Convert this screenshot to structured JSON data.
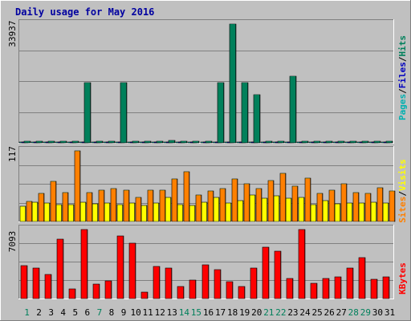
{
  "chart_data": [
    {
      "type": "bar",
      "title": "Daily usage for May 2016",
      "ylabel": "Pages / Files / Hits",
      "ylabel_parts": [
        "Pages",
        "Files",
        "Hits"
      ],
      "ymax_label": "33937",
      "ylim": [
        0,
        33937
      ],
      "grid": true,
      "categories": [
        "1",
        "2",
        "3",
        "4",
        "5",
        "6",
        "7",
        "8",
        "9",
        "10",
        "11",
        "12",
        "13",
        "14",
        "15",
        "16",
        "17",
        "18",
        "19",
        "20",
        "21",
        "22",
        "23",
        "24",
        "25",
        "26",
        "27",
        "28",
        "29",
        "30",
        "31"
      ],
      "series": [
        {
          "name": "Pages",
          "color": "#00b0b0",
          "values": [
            90,
            90,
            90,
            90,
            90,
            90,
            90,
            90,
            90,
            90,
            90,
            90,
            90,
            90,
            90,
            90,
            90,
            90,
            90,
            90,
            90,
            90,
            90,
            90,
            90,
            90,
            90,
            90,
            90,
            90,
            90
          ]
        },
        {
          "name": "Files",
          "color": "#0000c0",
          "values": [
            300,
            300,
            300,
            300,
            300,
            300,
            300,
            300,
            300,
            300,
            300,
            300,
            300,
            300,
            300,
            300,
            300,
            300,
            300,
            300,
            300,
            300,
            300,
            300,
            300,
            300,
            300,
            300,
            300,
            300,
            300
          ]
        },
        {
          "name": "Hits",
          "color": "#00805b",
          "values": [
            400,
            400,
            400,
            400,
            400,
            17200,
            400,
            400,
            17200,
            400,
            500,
            400,
            600,
            400,
            400,
            400,
            17200,
            33937,
            17200,
            13800,
            500,
            400,
            19000,
            500,
            400,
            400,
            400,
            500,
            400,
            500,
            400
          ]
        }
      ]
    },
    {
      "type": "bar",
      "ylabel": "Sites / Visits",
      "ylabel_parts": [
        "Sites",
        "Visits"
      ],
      "ymax_label": "117",
      "ylim": [
        0,
        117
      ],
      "grid": true,
      "categories": [
        "1",
        "2",
        "3",
        "4",
        "5",
        "6",
        "7",
        "8",
        "9",
        "10",
        "11",
        "12",
        "13",
        "14",
        "15",
        "16",
        "17",
        "18",
        "19",
        "20",
        "21",
        "22",
        "23",
        "24",
        "25",
        "26",
        "27",
        "28",
        "29",
        "30",
        "31"
      ],
      "series": [
        {
          "name": "Sites",
          "color": "#ffff00",
          "values": [
            25,
            32,
            30,
            28,
            28,
            32,
            29,
            31,
            28,
            30,
            27,
            30,
            40,
            28,
            26,
            32,
            40,
            30,
            34,
            44,
            38,
            42,
            38,
            40,
            28,
            34,
            29,
            30,
            30,
            32,
            31
          ]
        },
        {
          "name": "Visits",
          "color": "#ff8000",
          "values": [
            33,
            47,
            67,
            48,
            117,
            48,
            52,
            54,
            52,
            40,
            52,
            52,
            71,
            82,
            44,
            50,
            54,
            70,
            62,
            54,
            68,
            80,
            58,
            72,
            47,
            52,
            62,
            48,
            47,
            56,
            50
          ]
        }
      ]
    },
    {
      "type": "bar",
      "ylabel": "KBytes",
      "ylabel_parts": [
        "KBytes"
      ],
      "ymax_label": "7093",
      "ylim": [
        0,
        7093
      ],
      "grid": true,
      "categories": [
        "1",
        "2",
        "3",
        "4",
        "5",
        "6",
        "7",
        "8",
        "9",
        "10",
        "11",
        "12",
        "13",
        "14",
        "15",
        "16",
        "17",
        "18",
        "19",
        "20",
        "21",
        "22",
        "23",
        "24",
        "25",
        "26",
        "27",
        "28",
        "29",
        "30",
        "31"
      ],
      "series": [
        {
          "name": "KBytes",
          "color": "#ff0000",
          "values": [
            3400,
            3100,
            2500,
            6100,
            1000,
            7093,
            1500,
            1800,
            6400,
            5700,
            700,
            3300,
            3100,
            1200,
            1900,
            3500,
            3000,
            1700,
            1200,
            3100,
            5300,
            4900,
            2100,
            7093,
            1600,
            2100,
            2200,
            3100,
            4200,
            2000,
            2200
          ]
        }
      ]
    }
  ],
  "day_label_colors": [
    "#00805b",
    "#000000",
    "#000000",
    "#000000",
    "#000000",
    "#000000",
    "#00805b",
    "#000000",
    "#000000",
    "#000000",
    "#000000",
    "#000000",
    "#000000",
    "#00805b",
    "#00805b",
    "#000000",
    "#000000",
    "#000000",
    "#000000",
    "#000000",
    "#00805b",
    "#00805b",
    "#000000",
    "#000000",
    "#000000",
    "#000000",
    "#000000",
    "#00805b",
    "#00805b",
    "#000000",
    "#000000"
  ]
}
